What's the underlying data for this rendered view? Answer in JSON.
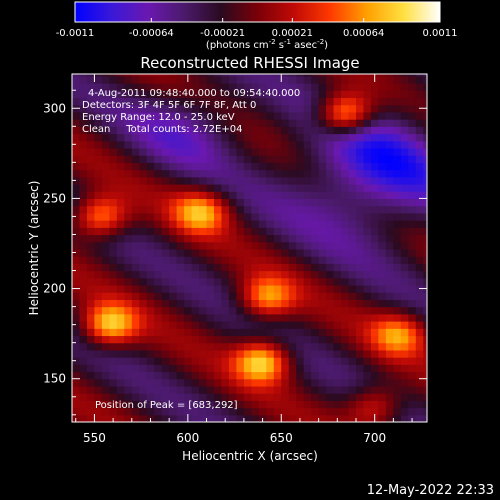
{
  "chart_data": {
    "type": "heatmap",
    "title": "Reconstructed RHESSI Image",
    "colorbar": {
      "tick_labels": [
        "-0.0011",
        "-0.00064",
        "-0.00021",
        "0.00021",
        "0.00064",
        "0.0011"
      ],
      "tick_values": [
        -0.0011,
        -0.00064,
        -0.00021,
        0.00021,
        0.00064,
        0.0011
      ],
      "range": [
        -0.0011,
        0.0011
      ],
      "units_prefix": "(photons cm",
      "units_exp1": "-2",
      "units_mid": " s",
      "units_exp2": "-1",
      "units_mid2": " asec",
      "units_exp3": "-2",
      "units_suffix": ")",
      "colors": [
        "#0000ff",
        "#3a18d8",
        "#6a18b0",
        "#4a1a6a",
        "#2a0a20",
        "#7a0008",
        "#c00a06",
        "#ff3a00",
        "#ffa000",
        "#ffe040",
        "#ffffff"
      ]
    },
    "xlabel": "Heliocentric X (arcsec)",
    "ylabel": "Heliocentric Y (arcsec)",
    "xlim": [
      538,
      728
    ],
    "ylim": [
      126,
      319
    ],
    "x_ticks": [
      550,
      600,
      650,
      700
    ],
    "y_ticks": [
      150,
      200,
      250,
      300
    ],
    "x_tick_labels": [
      "550",
      "600",
      "650",
      "700"
    ],
    "y_tick_labels": [
      "150",
      "200",
      "250",
      "300"
    ],
    "annotations": {
      "time_range": "4-Aug-2011 09:48:40.000 to 09:54:40.000",
      "detectors": "Detectors: 3F 4F 5F 6F 7F 8F, Att 0",
      "energy": "Energy Range: 12.0 - 25.0 keV",
      "clean": "Clean     Total counts: 2.72E+04",
      "peak": "Position of Peak = [683,292]"
    },
    "peak_position": [
      683,
      292
    ],
    "bright_sources": [
      {
        "x": 684,
        "y": 297,
        "value": 0.0011
      },
      {
        "x": 558,
        "y": 180,
        "value": 0.00095
      },
      {
        "x": 553,
        "y": 240,
        "value": 0.0009
      },
      {
        "x": 640,
        "y": 160,
        "value": 0.001
      },
      {
        "x": 607,
        "y": 243,
        "value": 0.0008
      },
      {
        "x": 642,
        "y": 195,
        "value": 0.0008
      },
      {
        "x": 713,
        "y": 175,
        "value": 0.0007
      },
      {
        "x": 700,
        "y": 135,
        "value": 0.0006
      }
    ]
  },
  "footer": {
    "timestamp": "12-May-2022 22:33"
  }
}
